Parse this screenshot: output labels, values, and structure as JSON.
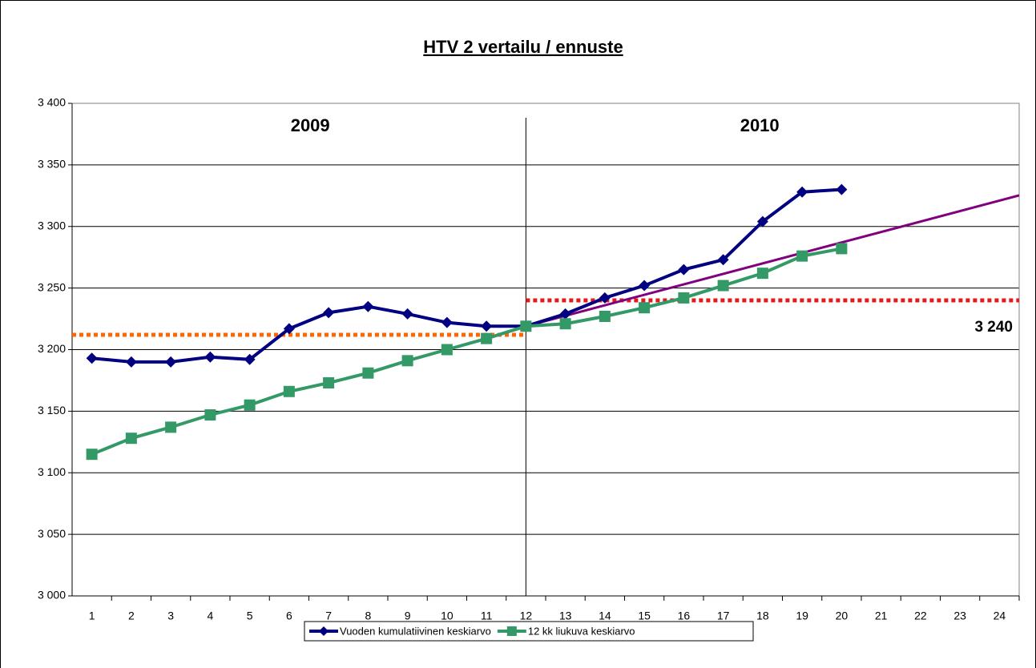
{
  "chart_data": {
    "type": "line",
    "title": "HTV 2 vertailu / ennuste",
    "categories": [
      "1",
      "2",
      "3",
      "4",
      "5",
      "6",
      "7",
      "8",
      "9",
      "10",
      "11",
      "12",
      "13",
      "14",
      "15",
      "16",
      "17",
      "18",
      "19",
      "20",
      "21",
      "22",
      "23",
      "24"
    ],
    "series": [
      {
        "name": "Vuoden kumulatiivinen keskiarvo",
        "color": "#000080",
        "marker": "diamond",
        "values": [
          3193,
          3190,
          3190,
          3194,
          3192,
          3217,
          3230,
          3235,
          3229,
          3222,
          3219,
          3219,
          3229,
          3242,
          3252,
          3265,
          3273,
          3304,
          3328,
          3330,
          null,
          null,
          null,
          null
        ]
      },
      {
        "name": "12 kk liukuva keskiarvo",
        "color": "#339966",
        "marker": "square",
        "values": [
          3115,
          3128,
          3137,
          3147,
          3155,
          3166,
          3173,
          3181,
          3191,
          3200,
          3209,
          3219,
          3221,
          3227,
          3234,
          3242,
          3252,
          3262,
          3276,
          3282,
          null,
          null,
          null,
          null
        ]
      }
    ],
    "trend": {
      "color": "#800080",
      "categories": [
        "12",
        "24"
      ],
      "values": [
        3219,
        3321
      ]
    },
    "divider": "12",
    "annotations": [
      "2009",
      "2010"
    ],
    "reference_lines": [
      {
        "value": 3212,
        "color": "#ff6600",
        "side": "left"
      },
      {
        "value": 3240,
        "color": "#e31a1c",
        "side": "right",
        "label": "3 240"
      }
    ],
    "ylim": [
      3000,
      3400
    ],
    "yticks": [
      {
        "value": 3000,
        "label": "3 000"
      },
      {
        "value": 3050,
        "label": "3 050"
      },
      {
        "value": 3100,
        "label": "3 100"
      },
      {
        "value": 3150,
        "label": "3 150"
      },
      {
        "value": 3200,
        "label": "3 200"
      },
      {
        "value": 3250,
        "label": "3 250"
      },
      {
        "value": 3300,
        "label": "3 300"
      },
      {
        "value": 3350,
        "label": "3 350"
      },
      {
        "value": 3400,
        "label": "3 400"
      }
    ],
    "grid": true,
    "legend": "bottom"
  }
}
